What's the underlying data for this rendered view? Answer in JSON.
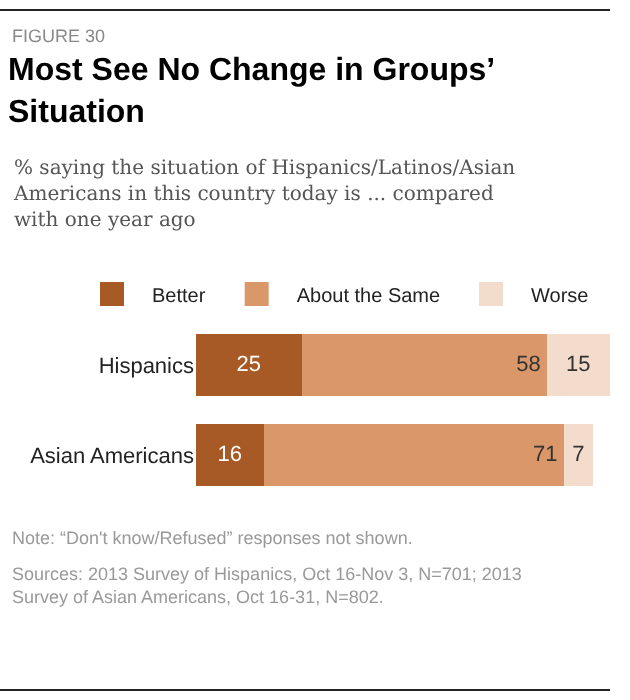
{
  "chart_data": {
    "type": "bar",
    "orientation": "horizontal",
    "stacked": true,
    "data_labels": true,
    "legend": "top",
    "tick_labels": "y",
    "title": "Most See No Change in Groups’ Situation",
    "subtitle": "% saying the situation of Hispanics/Latinos/Asian Americans in this country today is ... compared with one year ago",
    "categories": [
      "Hispanics",
      "Asian Americans"
    ],
    "series": [
      {
        "name": "Better",
        "color": "#a85a26",
        "values": [
          25,
          16
        ]
      },
      {
        "name": "About the Same",
        "color": "#d9976a",
        "values": [
          58,
          71
        ]
      },
      {
        "name": "Worse",
        "color": "#f3dccb",
        "values": [
          15,
          7
        ]
      }
    ],
    "annotations": [
      "FIGURE 30",
      "Note: “Don't know/Refused” responses not shown.",
      "Sources: 2013 Survey of Hispanics, Oct 16-Nov 3, N=701; 2013 Survey of Asian Americans, Oct 16-31, N=802."
    ]
  }
}
